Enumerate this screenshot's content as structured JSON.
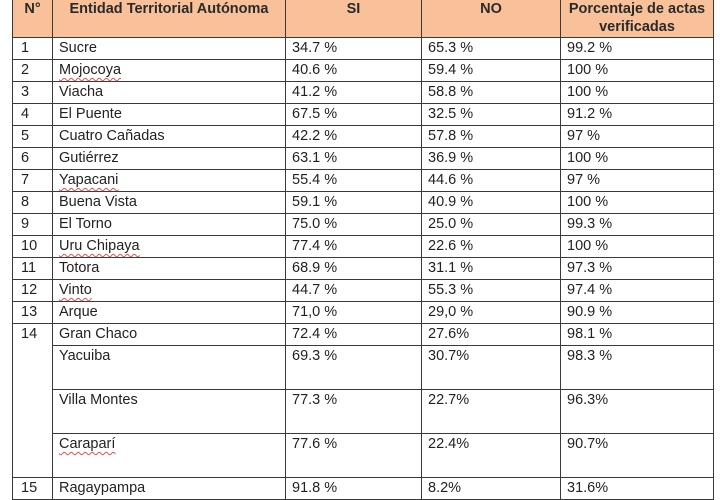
{
  "table": {
    "headers": {
      "num": "N°",
      "entity": "Entidad Territorial Autónoma",
      "si": "SI",
      "no": "NO",
      "pct": "Porcentaje de actas verificadas"
    },
    "header_color": "#f8c199",
    "rows": [
      {
        "n": "1",
        "entity": "Sucre",
        "si": "34.7 %",
        "no": "65.3 %",
        "pct": "99.2 %"
      },
      {
        "n": "2",
        "entity": "Mojocoya",
        "si": "40.6 %",
        "no": "59.4 %",
        "pct": "100 %"
      },
      {
        "n": "3",
        "entity": "Viacha",
        "si": "41.2 %",
        "no": "58.8 %",
        "pct": "100 %"
      },
      {
        "n": "4",
        "entity": "El Puente",
        "si": "67.5 %",
        "no": "32.5 %",
        "pct": "91.2 %"
      },
      {
        "n": "5",
        "entity": "Cuatro Cañadas",
        "si": "42.2 %",
        "no": "57.8 %",
        "pct": "97 %"
      },
      {
        "n": "6",
        "entity": "Gutiérrez",
        "si": "63.1 %",
        "no": "36.9 %",
        "pct": "100 %"
      },
      {
        "n": "7",
        "entity": "Yapacani",
        "si": "55.4 %",
        "no": "44.6 %",
        "pct": "97 %"
      },
      {
        "n": "8",
        "entity": "Buena Vista",
        "si": "59.1 %",
        "no": "40.9 %",
        "pct": "100 %"
      },
      {
        "n": "9",
        "entity": "El Torno",
        "si": "75.0 %",
        "no": "25.0 %",
        "pct": "99.3 %"
      },
      {
        "n": "10",
        "entity": "Uru Chipaya",
        "si": "77.4 %",
        "no": "22.6 %",
        "pct": "100 %"
      },
      {
        "n": "11",
        "entity": "Totora",
        "si": "68.9 %",
        "no": "31.1 %",
        "pct": "97.3 %"
      },
      {
        "n": "12",
        "entity": "Vinto",
        "si": "44.7 %",
        "no": "55.3 %",
        "pct": "97.4 %"
      },
      {
        "n": "13",
        "entity": "Arque",
        "si": "71,0 %",
        "no": "29,0 %",
        "pct": "90.9 %"
      },
      {
        "n": "14",
        "entity": "Gran Chaco",
        "si": "72.4 %",
        "no": "27.6%",
        "pct": "98.1 %"
      },
      {
        "n": "",
        "entity": "Yacuiba",
        "si": "69.3 %",
        "no": "30.7%",
        "pct": "98.3 %"
      },
      {
        "n": "",
        "entity": "Villa Montes",
        "si": "77.3 %",
        "no": "22.7%",
        "pct": "96.3%"
      },
      {
        "n": "",
        "entity": "Caraparí",
        "si": "77.6 %",
        "no": "22.4%",
        "pct": "90.7%"
      },
      {
        "n": "15",
        "entity": "Ragaypampa",
        "si": "91.8 %",
        "no": "8.2%",
        "pct": "31.6%"
      }
    ]
  }
}
